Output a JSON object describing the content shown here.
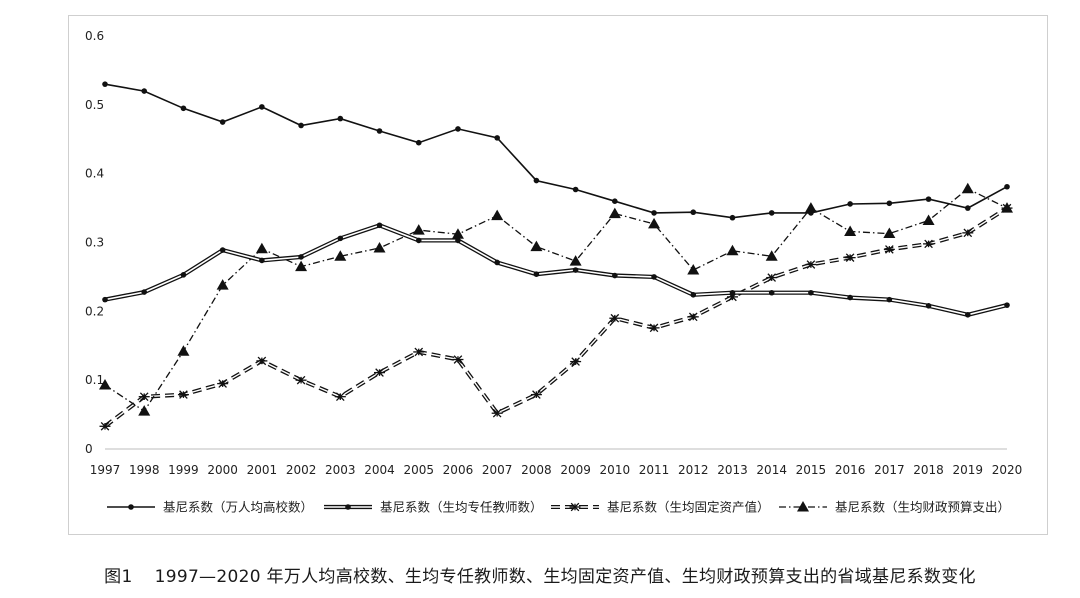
{
  "caption": {
    "label": "图1",
    "text": "1997—2020 年万人均高校数、生均专任教师数、生均固定资产值、生均财政预算支出的省域基尼系数变化"
  },
  "chart_data": {
    "type": "line",
    "title": "",
    "xlabel": "",
    "ylabel": "",
    "ylim": [
      0,
      0.6
    ],
    "y_ticks": [
      "0",
      "0.1",
      "0.2",
      "0.3",
      "0.4",
      "0.5",
      "0.6"
    ],
    "grid": false,
    "legend_position": "bottom",
    "x": [
      "1997",
      "1998",
      "1999",
      "2000",
      "2001",
      "2002",
      "2003",
      "2004",
      "2005",
      "2006",
      "2007",
      "2008",
      "2009",
      "2010",
      "2011",
      "2012",
      "2013",
      "2014",
      "2015",
      "2016",
      "2017",
      "2018",
      "2019",
      "2020"
    ],
    "series": [
      {
        "name": "基尼系数（万人均高校数）",
        "style": "solid-circle",
        "values": [
          0.53,
          0.52,
          0.495,
          0.475,
          0.497,
          0.47,
          0.48,
          0.462,
          0.445,
          0.465,
          0.452,
          0.39,
          0.377,
          0.36,
          0.343,
          0.344,
          0.336,
          0.343,
          0.343,
          0.356,
          0.357,
          0.363,
          0.35,
          0.381
        ]
      },
      {
        "name": "基尼系数（生均专任教师数）",
        "style": "double-circle",
        "values": [
          0.217,
          0.228,
          0.253,
          0.289,
          0.274,
          0.279,
          0.306,
          0.325,
          0.303,
          0.303,
          0.271,
          0.254,
          0.26,
          0.252,
          0.25,
          0.224,
          0.227,
          0.227,
          0.227,
          0.22,
          0.217,
          0.208,
          0.195,
          0.209
        ]
      },
      {
        "name": "基尼系数（生均固定资产值）",
        "style": "dashed-star",
        "values": [
          0.033,
          0.076,
          0.079,
          0.095,
          0.128,
          0.1,
          0.076,
          0.111,
          0.141,
          0.13,
          0.052,
          0.079,
          0.127,
          0.19,
          0.176,
          0.192,
          0.221,
          0.249,
          0.268,
          0.278,
          0.29,
          0.298,
          0.314,
          0.35
        ]
      },
      {
        "name": "基尼系数（生均财政预算支出）",
        "style": "dashdot-triangle",
        "values": [
          0.093,
          0.055,
          0.142,
          0.238,
          0.291,
          0.265,
          0.28,
          0.292,
          0.318,
          0.312,
          0.339,
          0.294,
          0.273,
          0.342,
          0.327,
          0.26,
          0.288,
          0.28,
          0.35,
          0.316,
          0.313,
          0.332,
          0.378,
          0.35
        ]
      }
    ]
  }
}
